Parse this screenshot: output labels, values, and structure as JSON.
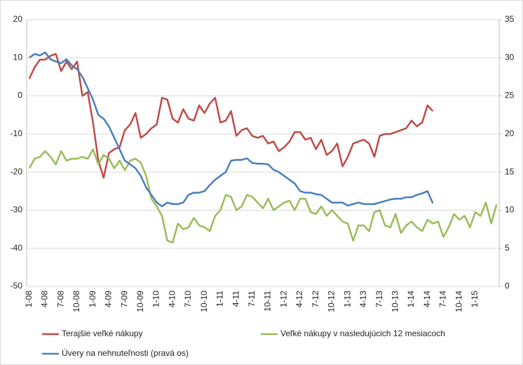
{
  "chart_data": {
    "type": "line",
    "categories": [
      "1-08",
      null,
      null,
      "4-08",
      null,
      null,
      "7-08",
      null,
      null,
      "10-08",
      null,
      null,
      "1-09",
      null,
      null,
      "4-09",
      null,
      null,
      "7-09",
      null,
      null,
      "10-09",
      null,
      null,
      "1-10",
      null,
      null,
      "4-10",
      null,
      null,
      "7-10",
      null,
      null,
      "10-10",
      null,
      null,
      "1-11",
      null,
      null,
      "4-11",
      null,
      null,
      "7-11",
      null,
      null,
      "10-11",
      null,
      null,
      "1-12",
      null,
      null,
      "4-12",
      null,
      null,
      "7-12",
      null,
      null,
      "10-12",
      null,
      null,
      "1-13",
      null,
      null,
      "4-13",
      null,
      null,
      "7-13",
      null,
      null,
      "10-13",
      null,
      null,
      "1-14",
      null,
      null,
      "4-14",
      null,
      null,
      "7-14",
      null,
      null,
      "10-14",
      null,
      null,
      "1-15",
      null,
      null,
      null,
      null
    ],
    "series": [
      {
        "name": "Terajšie veľké nákupy",
        "color": "#be4b48",
        "values": [
          4.5,
          7.5,
          9.5,
          9.5,
          10.5,
          11,
          6.5,
          9,
          7,
          9,
          0,
          1,
          -7,
          -17,
          -21.5,
          -15,
          -14,
          -13.5,
          -9,
          -7.5,
          -4.5,
          -11,
          -10,
          -8.5,
          -7.5,
          -0.5,
          -1,
          -6,
          -7,
          -3.5,
          -6,
          -6.5,
          -2.5,
          -4.5,
          -2,
          -0.5,
          -7,
          -6.5,
          -4,
          -10.5,
          -9,
          -8.5,
          -10.5,
          -11,
          -10.5,
          -12.5,
          -12,
          -14.5,
          -13.5,
          -12,
          -9.5,
          -9.5,
          -11.5,
          -11,
          -14,
          -11.5,
          -15.5,
          -14.5,
          -12.5,
          -18.5,
          -16,
          -12.5,
          -12,
          -11.5,
          -12.5,
          -16,
          -10.5,
          -10,
          -10,
          -9.5,
          -9,
          -8.5,
          -6.5,
          -8,
          -7,
          -2.5,
          -4,
          null,
          null,
          null,
          null,
          null,
          null,
          null,
          null,
          null,
          null,
          null,
          null
        ]
      },
      {
        "name": "Veľké nákupy v nasledujúcich 12 mesiacoch",
        "color": "#9bbb59",
        "values": [
          -19,
          -16.5,
          -16,
          -14.5,
          -16,
          -18,
          -14.5,
          -17,
          -16.5,
          -16.5,
          -16,
          -16.5,
          -14,
          -18,
          -15.5,
          -16.5,
          -19,
          -17,
          -19.5,
          -17,
          -16.5,
          -17.5,
          -21,
          -27,
          -29,
          -31.5,
          -38,
          -38.5,
          -33.5,
          -35,
          -34.5,
          -32,
          -34,
          -34.5,
          -35.5,
          -31.5,
          -30,
          -26,
          -26.5,
          -30,
          -29,
          -26,
          -26.5,
          -28,
          -29.5,
          -27,
          -30,
          -29,
          -28,
          -27.5,
          -30,
          -27,
          -27,
          -30.5,
          -31,
          -29,
          -31.5,
          -30,
          -31.5,
          -33,
          -33.5,
          -38,
          -34,
          -34,
          -35.5,
          -30.5,
          -30,
          -34,
          -34.5,
          -31,
          -36,
          -34,
          -33,
          -34.5,
          -35.5,
          -32.5,
          -33.5,
          -33,
          -37,
          -34.5,
          -31,
          -32.5,
          -31.5,
          -34.5,
          -30.5,
          -31.5,
          -28,
          -33.5,
          -28.5
        ]
      },
      {
        "name": "Úvery na nehnuteľnosti (pravá os)",
        "color": "#4a7ebb",
        "axis": "y2",
        "values": [
          30,
          30.5,
          30.3,
          30.7,
          29.8,
          29.5,
          29.3,
          29.8,
          29,
          28.5,
          27.5,
          26,
          24.5,
          22.5,
          22,
          21,
          19.5,
          18,
          16.5,
          16,
          15.5,
          14.5,
          13,
          12,
          11,
          10.5,
          11,
          10.8,
          10.8,
          11,
          12,
          12.3,
          12.3,
          12.5,
          13.3,
          14,
          14.5,
          15,
          16.5,
          16.6,
          16.6,
          16.8,
          16.2,
          16.1,
          16.1,
          16,
          15.3,
          15,
          14.5,
          14,
          13.5,
          12.5,
          12.3,
          12.3,
          12.1,
          12,
          11.5,
          11,
          11,
          11,
          10.6,
          10.8,
          11,
          10.8,
          10.8,
          10.8,
          11,
          11.2,
          11.4,
          11.5,
          11.5,
          11.7,
          11.7,
          12,
          12.2,
          12.5,
          10.9,
          null,
          null,
          null,
          null,
          null,
          null,
          null,
          null,
          null,
          null,
          null,
          null
        ]
      }
    ],
    "ylim": [
      -50,
      20
    ],
    "yticks": [
      -50,
      -40,
      -30,
      -20,
      -10,
      0,
      10,
      20
    ],
    "y2lim": [
      0,
      35
    ],
    "y2ticks": [
      0,
      5,
      10,
      15,
      20,
      25,
      30,
      35
    ],
    "grid": true,
    "legend": "bottom"
  }
}
